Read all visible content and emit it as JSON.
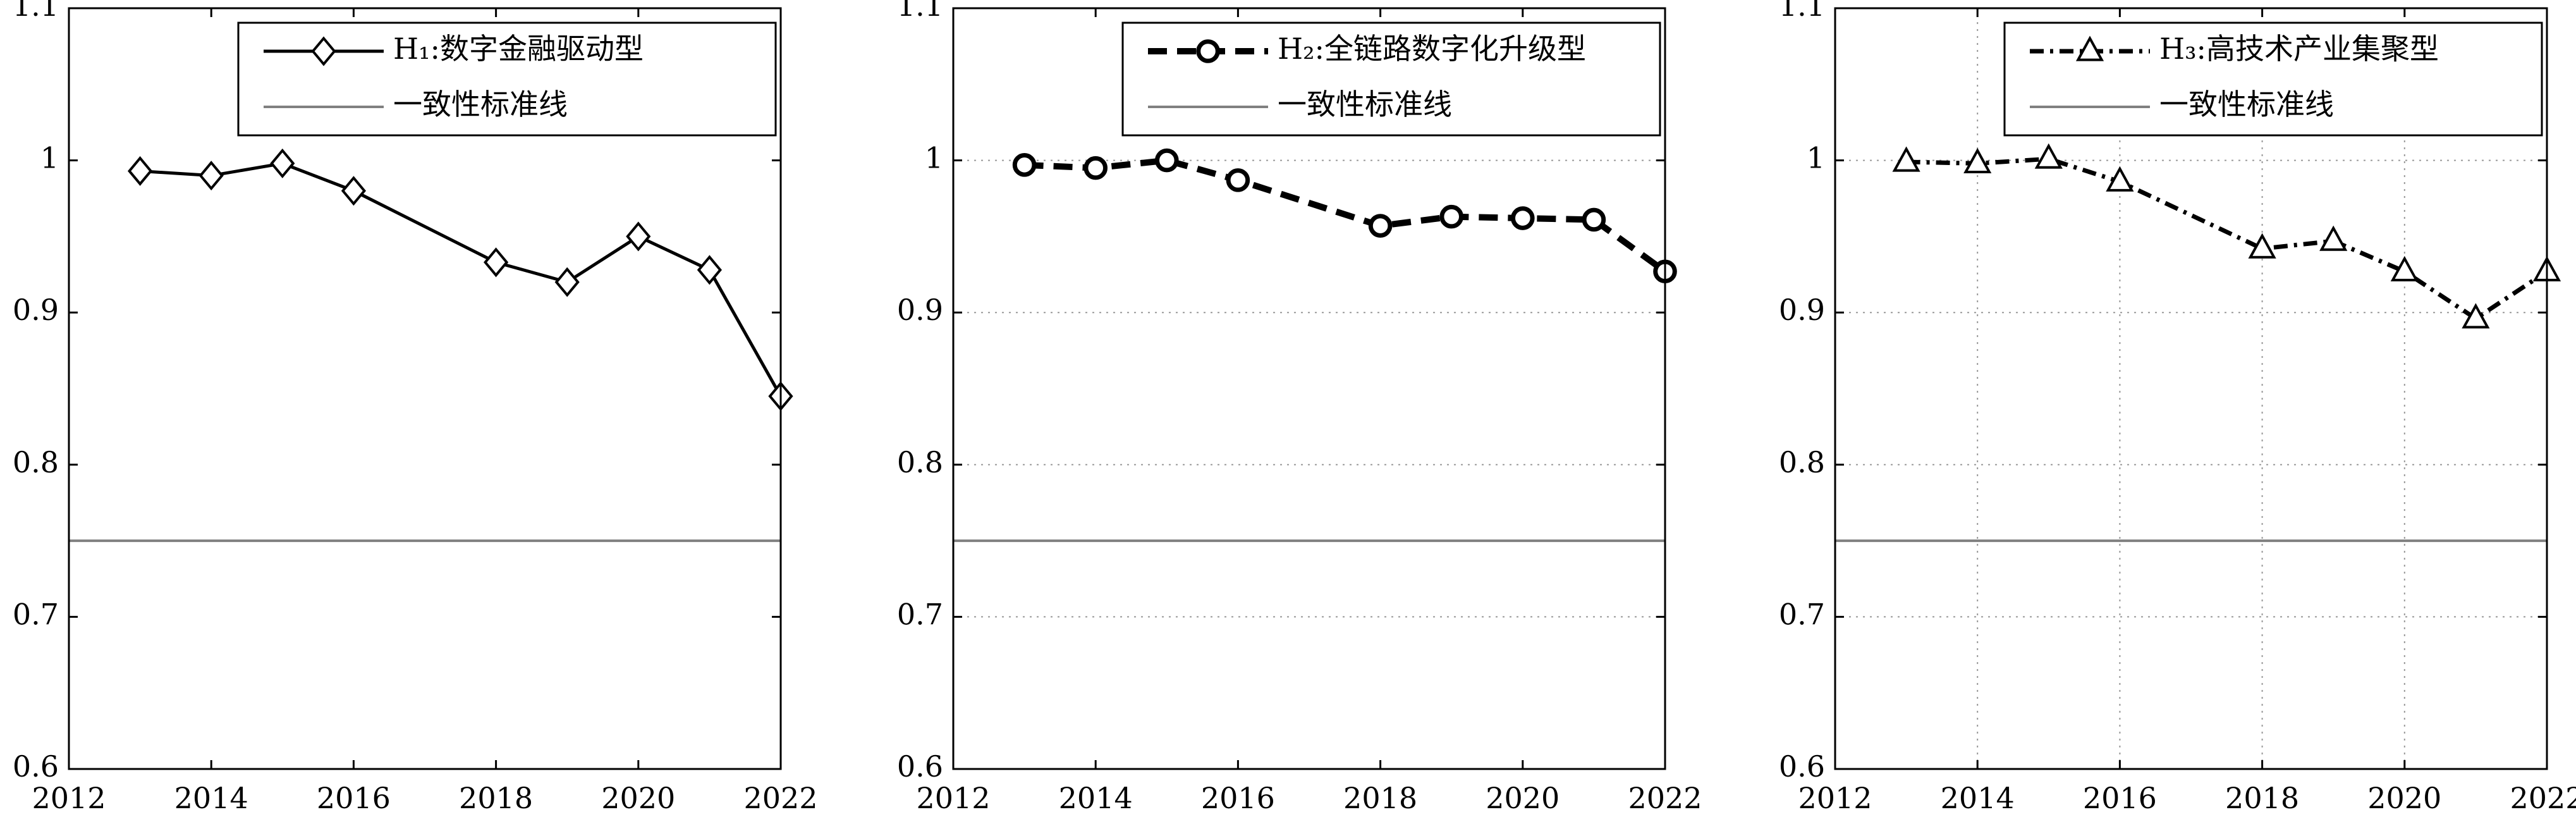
{
  "chart_data": [
    {
      "type": "line",
      "x": [
        2013,
        2014,
        2015,
        2016,
        2018,
        2019,
        2020,
        2021,
        2022
      ],
      "series": [
        {
          "name": "H₁:数字金融驱动型",
          "color": "#000000",
          "marker": "diamond",
          "linestyle": "solid",
          "values": [
            0.993,
            0.99,
            0.998,
            0.98,
            0.933,
            0.92,
            0.95,
            0.928,
            0.845
          ]
        }
      ],
      "reference_line": {
        "name": "一致性标准线",
        "color": "#808080",
        "value": 0.75
      },
      "xlim": [
        2012,
        2022
      ],
      "xticks": [
        2012,
        2014,
        2016,
        2018,
        2020,
        2022
      ],
      "ylim": [
        0.6,
        1.1
      ],
      "yticks": [
        0.6,
        0.7,
        0.8,
        0.9,
        1,
        1.1
      ],
      "grid": "none",
      "legend": "upper right"
    },
    {
      "type": "line",
      "x": [
        2013,
        2014,
        2015,
        2016,
        2018,
        2019,
        2020,
        2021,
        2022
      ],
      "series": [
        {
          "name": "H₂:全链路数字化升级型",
          "color": "#000000",
          "marker": "circle",
          "linestyle": "dashed",
          "values": [
            0.997,
            0.995,
            1.0,
            0.987,
            0.957,
            0.963,
            0.962,
            0.961,
            0.927
          ]
        }
      ],
      "reference_line": {
        "name": "一致性标准线",
        "color": "#808080",
        "value": 0.75
      },
      "xlim": [
        2012,
        2022
      ],
      "xticks": [
        2012,
        2014,
        2016,
        2018,
        2020,
        2022
      ],
      "ylim": [
        0.6,
        1.1
      ],
      "yticks": [
        0.6,
        0.7,
        0.8,
        0.9,
        1,
        1.1
      ],
      "grid": "y",
      "legend": "upper right"
    },
    {
      "type": "line",
      "x": [
        2013,
        2014,
        2015,
        2016,
        2018,
        2019,
        2020,
        2021,
        2022
      ],
      "series": [
        {
          "name": "H₃:高技术产业集聚型",
          "color": "#000000",
          "marker": "triangle",
          "linestyle": "dashdot",
          "values": [
            0.999,
            0.998,
            1.001,
            0.986,
            0.942,
            0.947,
            0.927,
            0.896,
            0.927
          ]
        }
      ],
      "reference_line": {
        "name": "一致性标准线",
        "color": "#808080",
        "value": 0.75
      },
      "xlim": [
        2012,
        2022
      ],
      "xticks": [
        2012,
        2014,
        2016,
        2018,
        2020,
        2022
      ],
      "ylim": [
        0.6,
        1.1
      ],
      "yticks": [
        0.6,
        0.7,
        0.8,
        0.9,
        1,
        1.1
      ],
      "grid": "both",
      "legend": "upper right"
    }
  ]
}
